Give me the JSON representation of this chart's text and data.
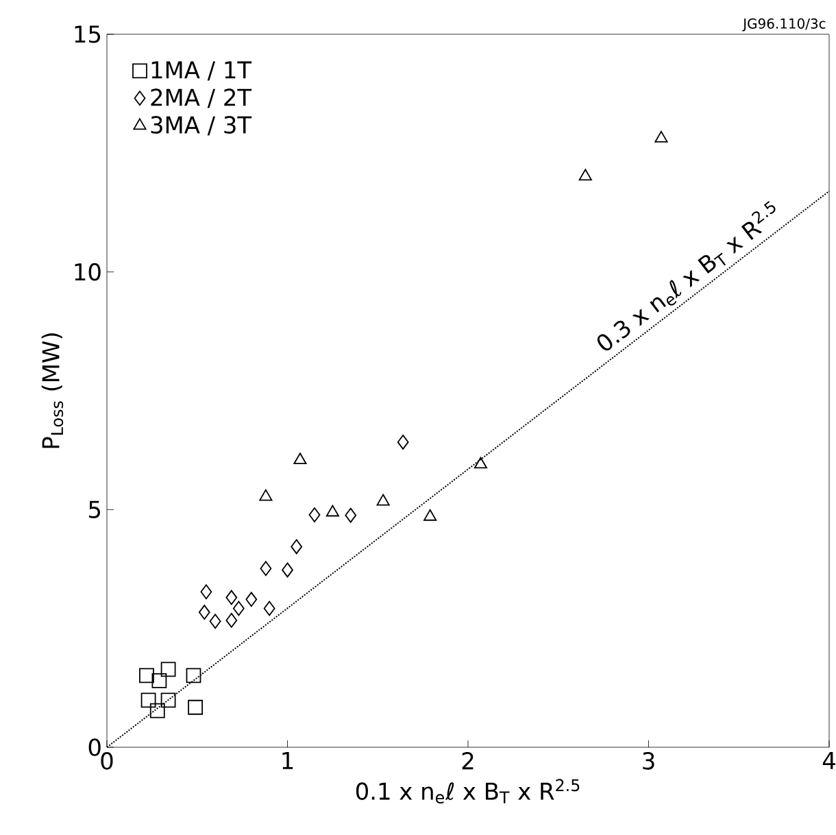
{
  "chart_data": {
    "type": "scatter",
    "xlabel": "0.1 x n$_{e}$ℓ x B$_{T}$ x R$^{2.5}$",
    "ylabel": "P$_{Loss}$ (MW)",
    "xlim": [
      0,
      4
    ],
    "ylim": [
      0,
      15
    ],
    "xticks": [
      0,
      1,
      2,
      3,
      4
    ],
    "yticks": [
      0,
      5,
      10,
      15
    ],
    "grid": false,
    "legend": "top left",
    "annotations": [
      "JG96.110/3c"
    ],
    "series": [
      {
        "name": "1MA / 1T",
        "color": "#000000",
        "marker": "square",
        "x": [
          0.22,
          0.34,
          0.29,
          0.48,
          0.23,
          0.34,
          0.28,
          0.49
        ],
        "values": [
          1.51,
          1.64,
          1.4,
          1.51,
          0.99,
          0.99,
          0.77,
          0.84
        ]
      },
      {
        "name": "2MA / 2T",
        "color": "#000000",
        "marker": "diamond",
        "x": [
          0.55,
          0.54,
          0.6,
          0.69,
          0.69,
          0.73,
          0.8,
          0.9,
          0.88,
          1.0,
          1.05,
          1.15,
          1.35,
          1.64
        ],
        "values": [
          3.27,
          2.84,
          2.65,
          3.15,
          2.67,
          2.92,
          3.11,
          2.92,
          3.76,
          3.73,
          4.22,
          4.89,
          4.88,
          6.42
        ]
      },
      {
        "name": "3MA / 3T",
        "color": "#000000",
        "marker": "triangle",
        "x": [
          0.88,
          1.07,
          1.25,
          1.53,
          1.79,
          2.07,
          2.65,
          3.07
        ],
        "values": [
          5.27,
          6.04,
          4.94,
          5.17,
          4.85,
          5.95,
          12.01,
          12.81
        ]
      },
      {
        "name": "0.3 x n$_{e}$ℓ x B$_{T}$ x R$^{2.5}$",
        "type": "line",
        "color": "#000000",
        "marker": "none",
        "line_style": "dotted",
        "x": [
          0,
          4
        ],
        "values": [
          0,
          11.7
        ]
      }
    ]
  }
}
